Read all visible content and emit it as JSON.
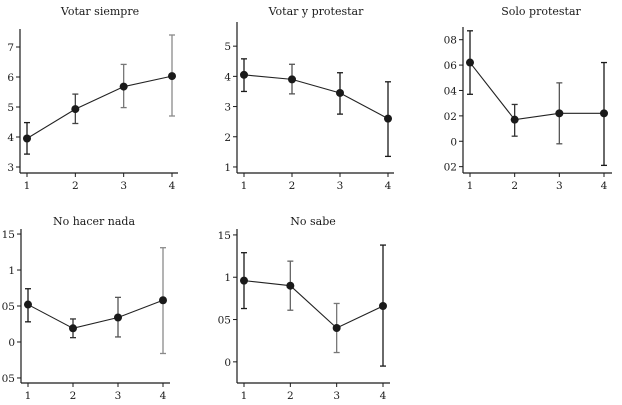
{
  "chart_data": [
    {
      "type": "line",
      "title": "Votar siempre",
      "xlabel": "",
      "ylabel": "",
      "x": [
        1,
        2,
        3,
        4
      ],
      "x_tick_labels": [
        "1",
        "2",
        "3",
        "4"
      ],
      "y_ticks": [
        3,
        4,
        5,
        6,
        7
      ],
      "y_tick_labels": [
        "3",
        "4",
        "5",
        "6",
        "7"
      ],
      "ylim": [
        2.8,
        7.6
      ],
      "values": [
        3.95,
        4.93,
        5.68,
        6.03
      ],
      "ci_low": [
        3.43,
        4.45,
        4.98,
        4.7
      ],
      "ci_high": [
        4.48,
        5.43,
        6.42,
        7.4
      ],
      "errorbar_colors": [
        "#1a1a1a",
        "#444444",
        "#777777",
        "#8a8a8a"
      ],
      "grid": false
    },
    {
      "type": "line",
      "title": "Votar y protestar",
      "xlabel": "",
      "ylabel": "",
      "x": [
        1,
        2,
        3,
        4
      ],
      "x_tick_labels": [
        "1",
        "2",
        "3",
        "4"
      ],
      "y_ticks": [
        1,
        2,
        3,
        4,
        5
      ],
      "y_tick_labels": [
        "1",
        "2",
        "3",
        "4",
        "5"
      ],
      "ylim": [
        0.8,
        5.8
      ],
      "values": [
        4.05,
        3.9,
        3.45,
        2.6
      ],
      "ci_low": [
        3.5,
        3.42,
        2.75,
        1.35
      ],
      "ci_high": [
        4.58,
        4.4,
        4.12,
        3.82
      ],
      "errorbar_colors": [
        "#1a1a1a",
        "#555555",
        "#1a1a1a",
        "#1a1a1a"
      ],
      "grid": false
    },
    {
      "type": "line",
      "title": "Solo protestar",
      "xlabel": "",
      "ylabel": "",
      "x": [
        1,
        2,
        3,
        4
      ],
      "x_tick_labels": [
        "1",
        "2",
        "3",
        "4"
      ],
      "y_ticks": [
        -0.02,
        0,
        0.02,
        0.04,
        0.06,
        0.08
      ],
      "y_tick_labels": [
        "02",
        "0",
        "02",
        "04",
        "06",
        "08"
      ],
      "ylim": [
        -0.025,
        0.09
      ],
      "values": [
        0.062,
        0.017,
        0.022,
        0.022
      ],
      "ci_low": [
        0.037,
        0.004,
        -0.002,
        -0.019
      ],
      "ci_high": [
        0.087,
        0.029,
        0.046,
        0.062
      ],
      "errorbar_colors": [
        "#1a1a1a",
        "#333333",
        "#555555",
        "#1a1a1a"
      ],
      "grid": false
    },
    {
      "type": "line",
      "title": "No hacer nada",
      "xlabel": "",
      "ylabel": "",
      "x": [
        1,
        2,
        3,
        4
      ],
      "x_tick_labels": [
        "1",
        "2",
        "3",
        "4"
      ],
      "y_ticks": [
        -0.05,
        0,
        0.05,
        0.1,
        0.15
      ],
      "y_tick_labels": [
        "05",
        "0",
        "05",
        "1",
        "15"
      ],
      "ylim": [
        -0.057,
        0.157
      ],
      "values": [
        0.052,
        0.019,
        0.034,
        0.058
      ],
      "ci_low": [
        0.028,
        0.006,
        0.007,
        -0.016
      ],
      "ci_high": [
        0.074,
        0.032,
        0.062,
        0.131
      ],
      "errorbar_colors": [
        "#1a1a1a",
        "#333333",
        "#555555",
        "#8a8a8a"
      ],
      "grid": false
    },
    {
      "type": "line",
      "title": "No sabe",
      "xlabel": "",
      "ylabel": "",
      "x": [
        1,
        2,
        3,
        4
      ],
      "x_tick_labels": [
        "1",
        "2",
        "3",
        "4"
      ],
      "y_ticks": [
        0,
        0.05,
        0.1,
        0.15
      ],
      "y_tick_labels": [
        "0",
        "05",
        "1",
        "15"
      ],
      "ylim": [
        -0.025,
        0.157
      ],
      "values": [
        0.096,
        0.09,
        0.04,
        0.066
      ],
      "ci_low": [
        0.063,
        0.061,
        0.011,
        -0.005
      ],
      "ci_high": [
        0.129,
        0.119,
        0.069,
        0.138
      ],
      "errorbar_colors": [
        "#1a1a1a",
        "#666666",
        "#777777",
        "#1a1a1a"
      ],
      "grid": false
    }
  ]
}
